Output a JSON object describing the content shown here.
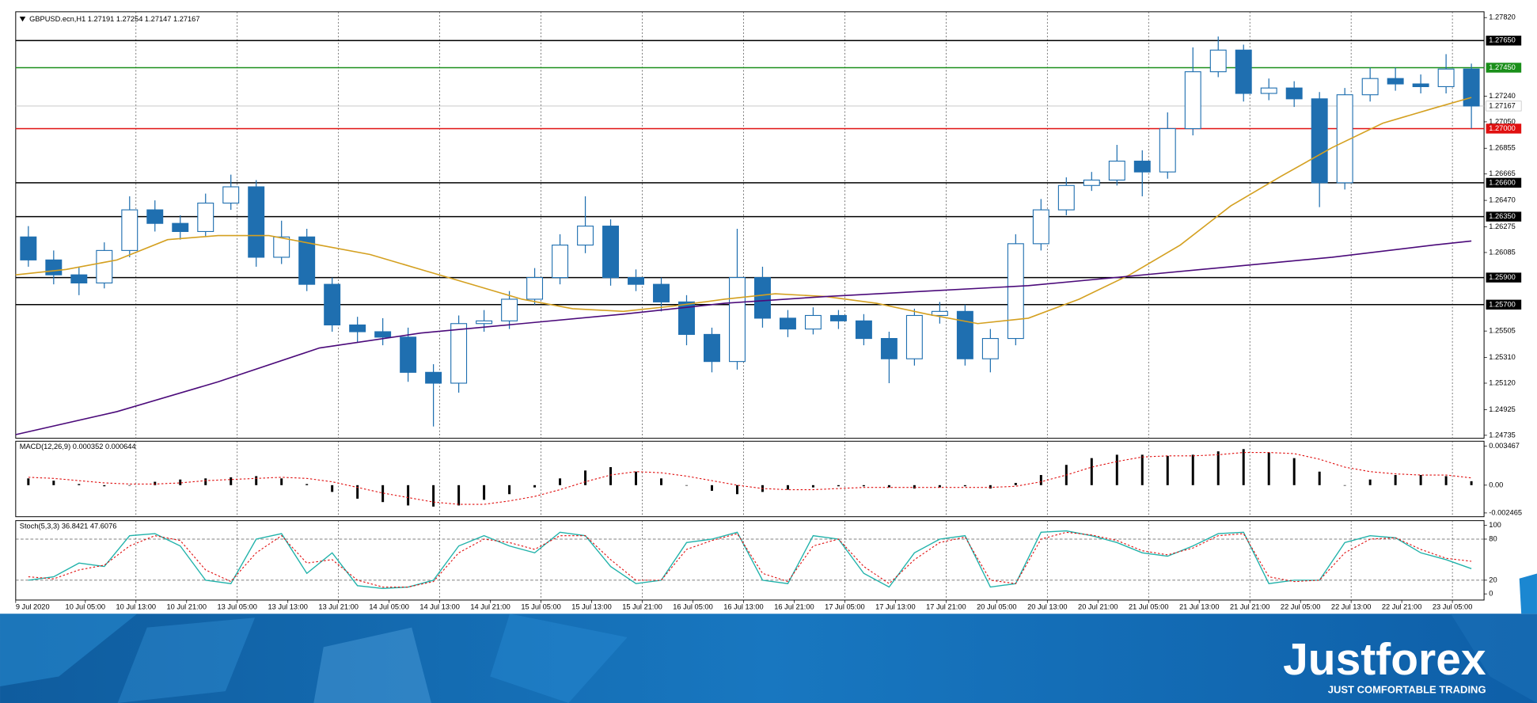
{
  "chart_data": [
    {
      "type": "candlestick",
      "title": "GBPUSD.ecn,H1  1.27191 1.27254 1.27147 1.27167",
      "xlim": [
        0,
        232
      ],
      "ylim": [
        1.24713,
        1.27863
      ],
      "yticks": [
        {
          "value": 1.2782,
          "label": "1.27820"
        },
        {
          "value": 1.2724,
          "label": "1.27240"
        },
        {
          "value": 1.2705,
          "label": "1.27050"
        },
        1.26855,
        1.26665,
        {
          "value": 1.2647,
          "label": "1.26470"
        },
        1.26275,
        1.26085,
        1.25505,
        {
          "value": 1.2531,
          "label": "1.25310"
        },
        {
          "value": 1.2512,
          "label": "1.25120"
        },
        1.24925,
        1.24735
      ],
      "up_color": "#ffffff",
      "down_color": "#1f6fb0",
      "wick_color": "#1f6fb0",
      "x": [
        2,
        6,
        10,
        14,
        18,
        22,
        26,
        30,
        34,
        38,
        42,
        46,
        50,
        54,
        58,
        62,
        66,
        70,
        74,
        78,
        82,
        86,
        90,
        94,
        98,
        102,
        106,
        110,
        114,
        118,
        122,
        126,
        130,
        134,
        138,
        142,
        146,
        150,
        154,
        158,
        162,
        166,
        170,
        174,
        178,
        182,
        186,
        190,
        194,
        198,
        202,
        206,
        210,
        214,
        218,
        222,
        226,
        230
      ],
      "open": [
        1.262,
        1.2603,
        1.2592,
        1.2586,
        1.261,
        1.264,
        1.263,
        1.2624,
        1.2645,
        1.2657,
        1.2605,
        1.262,
        1.2585,
        1.2555,
        1.255,
        1.2546,
        1.252,
        1.2512,
        1.2556,
        1.2558,
        1.2574,
        1.259,
        1.2614,
        1.2628,
        1.259,
        1.2585,
        1.2572,
        1.2548,
        1.2528,
        1.259,
        1.256,
        1.2552,
        1.2562,
        1.2558,
        1.2545,
        1.253,
        1.2562,
        1.2565,
        1.253,
        1.2545,
        1.2615,
        1.264,
        1.2658,
        1.2662,
        1.2676,
        1.2668,
        1.27,
        1.2742,
        1.2758,
        1.2726,
        1.273,
        1.2722,
        1.266,
        1.2725,
        1.2737,
        1.2733,
        1.2731,
        1.2744
      ],
      "high": [
        1.2628,
        1.261,
        1.2598,
        1.2616,
        1.265,
        1.2647,
        1.2636,
        1.2652,
        1.2666,
        1.2662,
        1.2632,
        1.2626,
        1.259,
        1.2561,
        1.256,
        1.2553,
        1.2526,
        1.2562,
        1.2566,
        1.258,
        1.2597,
        1.2622,
        1.265,
        1.2633,
        1.2596,
        1.259,
        1.2577,
        1.2553,
        1.2626,
        1.2598,
        1.2566,
        1.2568,
        1.2566,
        1.2563,
        1.255,
        1.2567,
        1.2572,
        1.257,
        1.2552,
        1.2622,
        1.2648,
        1.2664,
        1.2668,
        1.2688,
        1.2684,
        1.2712,
        1.276,
        1.2768,
        1.2762,
        1.2737,
        1.2735,
        1.2727,
        1.273,
        1.2745,
        1.2745,
        1.274,
        1.2755,
        1.2748
      ],
      "low": [
        1.2598,
        1.2585,
        1.2577,
        1.2582,
        1.2605,
        1.2624,
        1.2618,
        1.262,
        1.264,
        1.2598,
        1.26,
        1.258,
        1.255,
        1.2542,
        1.254,
        1.2513,
        1.248,
        1.2505,
        1.255,
        1.2552,
        1.257,
        1.2585,
        1.2608,
        1.2584,
        1.258,
        1.2565,
        1.254,
        1.252,
        1.2522,
        1.2553,
        1.2546,
        1.2548,
        1.2552,
        1.254,
        1.2512,
        1.2525,
        1.2556,
        1.2525,
        1.252,
        1.254,
        1.261,
        1.2636,
        1.2654,
        1.2658,
        1.265,
        1.2663,
        1.2695,
        1.2738,
        1.272,
        1.2721,
        1.2716,
        1.2642,
        1.2655,
        1.272,
        1.2728,
        1.2726,
        1.2726,
        1.27
      ],
      "close": [
        1.2603,
        1.2592,
        1.2586,
        1.261,
        1.264,
        1.263,
        1.2624,
        1.2645,
        1.2657,
        1.2605,
        1.262,
        1.2585,
        1.2555,
        1.255,
        1.2546,
        1.252,
        1.2512,
        1.2556,
        1.2558,
        1.2574,
        1.259,
        1.2614,
        1.2628,
        1.259,
        1.2585,
        1.2572,
        1.2548,
        1.2528,
        1.259,
        1.256,
        1.2552,
        1.2562,
        1.2558,
        1.2545,
        1.253,
        1.2562,
        1.2565,
        1.253,
        1.2545,
        1.2615,
        1.264,
        1.2658,
        1.2662,
        1.2676,
        1.2668,
        1.27,
        1.2742,
        1.2758,
        1.2726,
        1.273,
        1.2722,
        1.266,
        1.2725,
        1.2737,
        1.2733,
        1.2731,
        1.2744,
        1.27167
      ],
      "overlays": [
        {
          "color": "#d4a020",
          "x": [
            0,
            8,
            16,
            24,
            32,
            40,
            48,
            56,
            64,
            72,
            80,
            88,
            96,
            104,
            112,
            120,
            128,
            136,
            144,
            152,
            160,
            168,
            176,
            184,
            192,
            200,
            208,
            216,
            224,
            230
          ],
          "values": [
            1.2592,
            1.2596,
            1.2603,
            1.2618,
            1.2621,
            1.2621,
            1.2614,
            1.2607,
            1.2596,
            1.2585,
            1.2574,
            1.2567,
            1.2565,
            1.2569,
            1.2574,
            1.2578,
            1.2576,
            1.2571,
            1.2563,
            1.2556,
            1.256,
            1.2574,
            1.2592,
            1.2614,
            1.2643,
            1.2665,
            1.2686,
            1.2704,
            1.2715,
            1.2723
          ]
        },
        {
          "color": "#4b0a7a",
          "x": [
            0,
            16,
            32,
            48,
            64,
            80,
            96,
            112,
            128,
            144,
            160,
            176,
            192,
            208,
            224,
            230
          ],
          "values": [
            1.2474,
            1.2491,
            1.2513,
            1.2538,
            1.2549,
            1.2556,
            1.2563,
            1.2571,
            1.2576,
            1.258,
            1.2584,
            1.2591,
            1.2598,
            1.2605,
            1.2614,
            1.2617
          ]
        }
      ],
      "levels": [
        {
          "value": 1.2765,
          "label": "1.27650",
          "color": "#000000"
        },
        {
          "value": 1.2745,
          "label": "1.27450",
          "color": "#1a8f1a"
        },
        {
          "value": 1.27,
          "label": "1.27000",
          "color": "#e01010"
        },
        {
          "value": 1.266,
          "label": "1.26600",
          "color": "#000000"
        },
        {
          "value": 1.2635,
          "label": "1.26350",
          "color": "#000000"
        },
        {
          "value": 1.259,
          "label": "1.25900",
          "color": "#000000"
        },
        {
          "value": 1.257,
          "label": "1.25700",
          "color": "#000000"
        }
      ],
      "current_price": {
        "value": 1.27167,
        "label": "1.27167",
        "color": "#c0c0c0"
      }
    },
    {
      "type": "macd",
      "title": "MACD(12,26,9) 0.000352 0.000644",
      "xlim": [
        0,
        232
      ],
      "ylim": [
        -0.0028,
        0.0039
      ],
      "yticks": [
        0.003467,
        {
          "value": 0,
          "label": "0.00"
        },
        -0.002465
      ],
      "x": [
        2,
        6,
        10,
        14,
        18,
        22,
        26,
        30,
        34,
        38,
        42,
        46,
        50,
        54,
        58,
        62,
        66,
        70,
        74,
        78,
        82,
        86,
        90,
        94,
        98,
        102,
        106,
        110,
        114,
        118,
        122,
        126,
        130,
        134,
        138,
        142,
        146,
        150,
        154,
        158,
        162,
        166,
        170,
        174,
        178,
        182,
        186,
        190,
        194,
        198,
        202,
        206,
        210,
        214,
        218,
        222,
        226,
        230
      ],
      "histogram": {
        "color": "#000000",
        "values": [
          0.0006,
          0.0004,
          0.0001,
          -0.0001,
          0,
          0.0003,
          0.0005,
          0.0006,
          0.0007,
          0.0008,
          0.0006,
          0.0001,
          -0.0006,
          -0.0012,
          -0.0015,
          -0.0018,
          -0.0019,
          -0.0018,
          -0.0013,
          -0.0008,
          -0.0002,
          0.0006,
          0.0013,
          0.0016,
          0.0012,
          0.0006,
          0,
          -0.0005,
          -0.0008,
          -0.0006,
          -0.0004,
          -0.0002,
          -0.0001,
          -0.0001,
          -0.0002,
          -0.0003,
          -0.0002,
          -0.0001,
          -0.0003,
          0.0002,
          0.0009,
          0.0018,
          0.0024,
          0.0027,
          0.0027,
          0.0026,
          0.0027,
          0.003,
          0.0032,
          0.0029,
          0.0024,
          0.0012,
          0,
          0.0005,
          0.0009,
          0.0009,
          0.0008,
          0.000352
        ]
      },
      "signal": {
        "color": "#e01010",
        "values": [
          0.0007,
          0.0006,
          0.0004,
          0.0002,
          0.0001,
          0.0001,
          0.0002,
          0.0004,
          0.0005,
          0.0006,
          0.0007,
          0.0006,
          0.0003,
          -0.0002,
          -0.0007,
          -0.0011,
          -0.0015,
          -0.0017,
          -0.0017,
          -0.0014,
          -0.001,
          -0.0004,
          0.0003,
          0.0009,
          0.0012,
          0.0011,
          0.0008,
          0.0004,
          0,
          -0.0003,
          -0.0004,
          -0.0004,
          -0.0003,
          -0.0002,
          -0.0002,
          -0.0002,
          -0.0002,
          -0.0002,
          -0.0002,
          -0.0001,
          0.0003,
          0.0009,
          0.0016,
          0.0021,
          0.0025,
          0.0026,
          0.0026,
          0.0027,
          0.0029,
          0.0029,
          0.0028,
          0.0023,
          0.0016,
          0.0012,
          0.001,
          0.0009,
          0.0009,
          0.000644
        ]
      }
    },
    {
      "type": "stochastic",
      "title": "Stoch(5,3,3) 36.8421 47.6076",
      "xlim": [
        0,
        232
      ],
      "ylim": [
        -9,
        107
      ],
      "yticks": [
        100,
        80,
        20,
        0
      ],
      "levels": [
        80,
        20
      ],
      "xticks": [
        {
          "value": 0,
          "label": "9 Jul 2020"
        },
        {
          "value": 11,
          "label": "10 Jul 05:00"
        },
        {
          "value": 19,
          "label": "10 Jul 13:00"
        },
        {
          "value": 27,
          "label": "10 Jul 21:00"
        },
        {
          "value": 35,
          "label": "13 Jul 05:00"
        },
        {
          "value": 43,
          "label": "13 Jul 13:00"
        },
        {
          "value": 51,
          "label": "13 Jul 21:00"
        },
        {
          "value": 59,
          "label": "14 Jul 05:00"
        },
        {
          "value": 67,
          "label": "14 Jul 13:00"
        },
        {
          "value": 75,
          "label": "14 Jul 21:00"
        },
        {
          "value": 83,
          "label": "15 Jul 05:00"
        },
        {
          "value": 91,
          "label": "15 Jul 13:00"
        },
        {
          "value": 99,
          "label": "15 Jul 21:00"
        },
        {
          "value": 107,
          "label": "16 Jul 05:00"
        },
        {
          "value": 115,
          "label": "16 Jul 13:00"
        },
        {
          "value": 123,
          "label": "16 Jul 21:00"
        },
        {
          "value": 131,
          "label": "17 Jul 05:00"
        },
        {
          "value": 139,
          "label": "17 Jul 13:00"
        },
        {
          "value": 147,
          "label": "17 Jul 21:00"
        },
        {
          "value": 155,
          "label": "20 Jul 05:00"
        },
        {
          "value": 163,
          "label": "20 Jul 13:00"
        },
        {
          "value": 171,
          "label": "20 Jul 21:00"
        },
        {
          "value": 179,
          "label": "21 Jul 05:00"
        },
        {
          "value": 187,
          "label": "21 Jul 13:00"
        },
        {
          "value": 195,
          "label": "21 Jul 21:00"
        },
        {
          "value": 203,
          "label": "22 Jul 05:00"
        },
        {
          "value": 211,
          "label": "22 Jul 13:00"
        },
        {
          "value": 219,
          "label": "22 Jul 21:00"
        },
        {
          "value": 227,
          "label": "23 Jul 05:00"
        }
      ],
      "x": [
        2,
        6,
        10,
        14,
        18,
        22,
        26,
        30,
        34,
        38,
        42,
        46,
        50,
        54,
        58,
        62,
        66,
        70,
        74,
        78,
        82,
        86,
        90,
        94,
        98,
        102,
        106,
        110,
        114,
        118,
        122,
        126,
        130,
        134,
        138,
        142,
        146,
        150,
        154,
        158,
        162,
        166,
        170,
        174,
        178,
        182,
        186,
        190,
        194,
        198,
        202,
        206,
        210,
        214,
        218,
        222,
        226,
        230
      ],
      "main": {
        "color": "#20b2aa",
        "values": [
          20,
          25,
          45,
          40,
          85,
          88,
          70,
          20,
          15,
          80,
          88,
          30,
          60,
          12,
          8,
          10,
          20,
          70,
          85,
          70,
          60,
          90,
          85,
          40,
          15,
          20,
          75,
          80,
          90,
          20,
          15,
          85,
          80,
          30,
          10,
          60,
          80,
          85,
          10,
          15,
          90,
          92,
          85,
          75,
          60,
          55,
          70,
          88,
          90,
          15,
          20,
          20,
          75,
          85,
          82,
          60,
          50,
          36.8421
        ]
      },
      "signal": {
        "color": "#e01010",
        "values": [
          25,
          22,
          35,
          42,
          70,
          85,
          78,
          35,
          18,
          60,
          85,
          45,
          50,
          20,
          10,
          10,
          18,
          60,
          80,
          75,
          65,
          85,
          85,
          50,
          20,
          20,
          65,
          78,
          88,
          30,
          18,
          70,
          80,
          40,
          15,
          50,
          75,
          83,
          20,
          15,
          80,
          90,
          86,
          78,
          63,
          57,
          67,
          85,
          88,
          25,
          18,
          20,
          60,
          80,
          82,
          65,
          52,
          47.6076
        ]
      }
    }
  ],
  "footer": {
    "logo": "Justforex",
    "tagline": "JUST COMFORTABLE TRADING"
  }
}
